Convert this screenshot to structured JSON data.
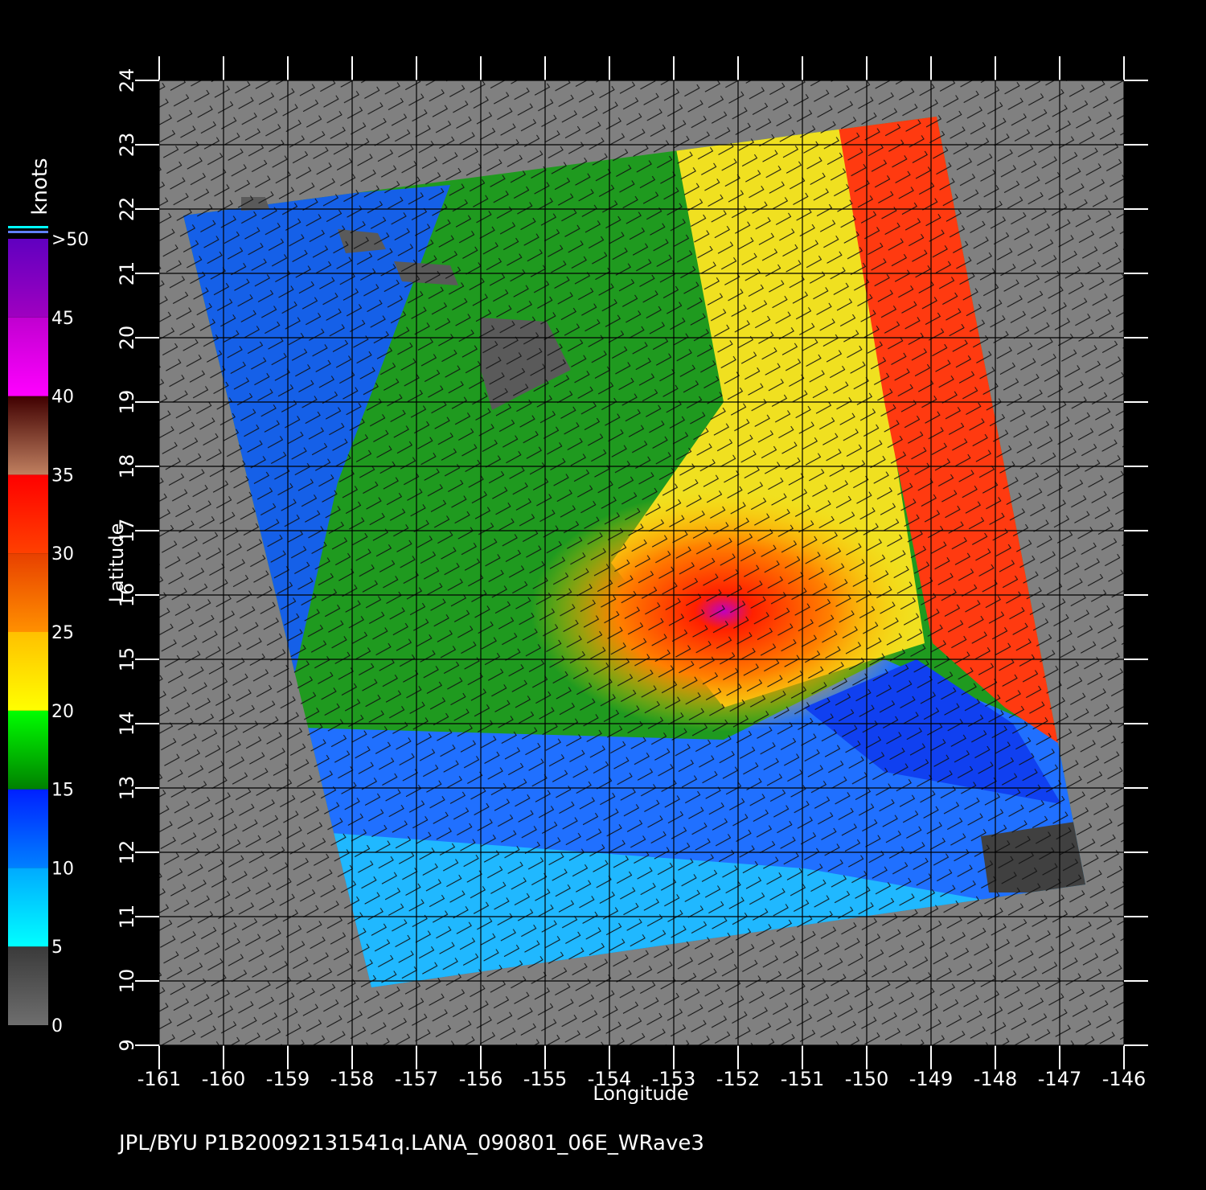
{
  "map": {
    "x_label": "Longitude",
    "y_label": "Latitude",
    "footer": "JPL/BYU  P1B20092131541q.LANA_090801_06E_WRave3",
    "xlim": [
      -161,
      -146
    ],
    "ylim": [
      9,
      24
    ],
    "xticks": [
      -161,
      -160,
      -159,
      -158,
      -157,
      -156,
      -155,
      -154,
      -153,
      -152,
      -151,
      -150,
      -149,
      -148,
      -147,
      -146
    ],
    "yticks": [
      9,
      10,
      11,
      12,
      13,
      14,
      15,
      16,
      17,
      18,
      19,
      20,
      21,
      22,
      23,
      24
    ],
    "colorbar": {
      "label": "knots",
      "ticks": [
        0,
        5,
        10,
        15,
        20,
        25,
        30,
        35,
        40,
        45,
        {
          "value": 50,
          "label": ">50"
        }
      ],
      "colors": [
        [
          "#6e6e6e",
          "#3a3a3a"
        ],
        [
          "#00ffff",
          "#00aaff"
        ],
        [
          "#0080ff",
          "#0020ff"
        ],
        [
          "#008000",
          "#00ff00"
        ],
        [
          "#ffff00",
          "#ffc000"
        ],
        [
          "#ff9000",
          "#e84000"
        ],
        [
          "#ff4000",
          "#ff0000"
        ],
        [
          "#c08060",
          "#400000"
        ],
        [
          "#ff00ff",
          "#c000d0"
        ],
        [
          "#a000c0",
          "#6000c0"
        ]
      ]
    }
  }
}
